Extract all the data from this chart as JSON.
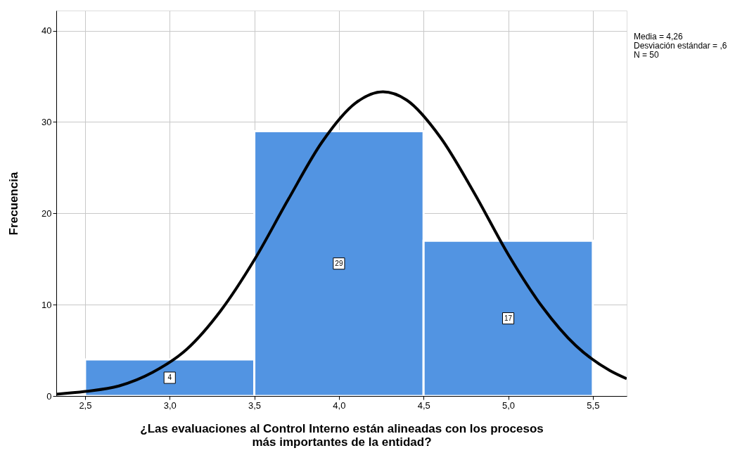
{
  "chart_data": {
    "type": "histogram",
    "xlabel": "¿Las evaluaciones al Control Interno están alineadas con los procesos más importantes de la entidad?",
    "ylabel": "Frecuencia",
    "bins": [
      2.5,
      3.5,
      4.5,
      5.5
    ],
    "values": [
      4,
      29,
      17
    ],
    "color": "#5294e2",
    "value_labels": [
      "4",
      "29",
      "17"
    ],
    "series": [
      {
        "type": "line",
        "color": "#000000",
        "x": [
          2.33,
          2.5,
          2.7,
          2.9,
          3.1,
          3.3,
          3.5,
          3.7,
          3.9,
          4.1,
          4.26,
          4.4,
          4.6,
          4.8,
          5.0,
          5.2,
          5.4,
          5.6,
          5.7
        ],
        "values": [
          0.2,
          0.5,
          1.1,
          2.6,
          5.1,
          9.3,
          14.9,
          21.5,
          27.8,
          32.1,
          33.3,
          32.4,
          28.3,
          22.2,
          15.5,
          9.8,
          5.5,
          2.8,
          1.9
        ]
      }
    ],
    "xlim": [
      2.33,
      5.7
    ],
    "ylim": [
      0,
      42.2
    ],
    "xticks": [
      {
        "value": 2.5,
        "label": "2,5"
      },
      {
        "value": 3.0,
        "label": "3,0"
      },
      {
        "value": 3.5,
        "label": "3,5"
      },
      {
        "value": 4.0,
        "label": "4,0"
      },
      {
        "value": 4.5,
        "label": "4,5"
      },
      {
        "value": 5.0,
        "label": "5,0"
      },
      {
        "value": 5.5,
        "label": "5,5"
      }
    ],
    "yticks": [
      0,
      10,
      20,
      30,
      40
    ],
    "grid": true,
    "annotations": [
      "Media = 4,26",
      "Desviación estándar = ,6",
      "N = 50"
    ]
  }
}
